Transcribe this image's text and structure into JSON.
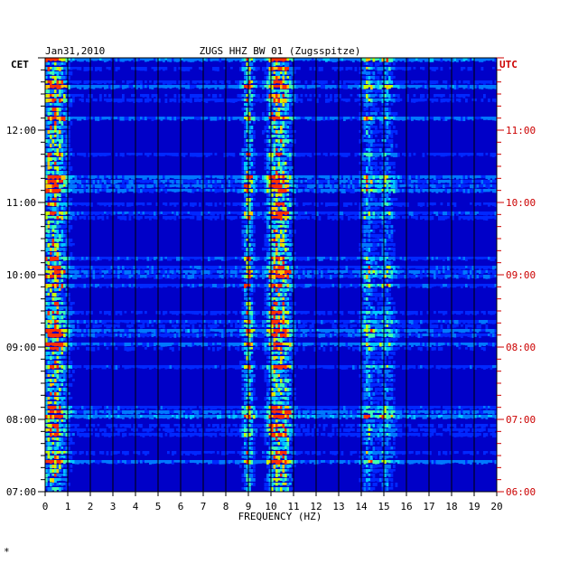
{
  "chart_data": {
    "type": "heatmap",
    "date": "Jan31,2010",
    "title": "ZUGS HHZ BW 01 (Zugsspitze)",
    "xlabel": "FREQUENCY (HZ)",
    "xlim": [
      0,
      20
    ],
    "x_ticks": [
      "0",
      "1",
      "2",
      "3",
      "4",
      "5",
      "6",
      "7",
      "8",
      "9",
      "10",
      "11",
      "12",
      "13",
      "14",
      "15",
      "16",
      "17",
      "18",
      "19",
      "20"
    ],
    "left_axis": {
      "label": "CET",
      "ticks": [
        "12:00",
        "11:00",
        "10:00",
        "09:00",
        "08:00",
        "07:00"
      ],
      "tick_hours": [
        12,
        11,
        10,
        9,
        8,
        7
      ],
      "color": "#000000"
    },
    "right_axis": {
      "label": "UTC",
      "ticks": [
        "11:00",
        "10:00",
        "09:00",
        "08:00",
        "07:00",
        "06:00"
      ],
      "tick_hours": [
        11,
        10,
        9,
        8,
        7,
        6
      ],
      "color": "#cc0000"
    },
    "time_range_cet": [
      "07:00",
      "13:00"
    ],
    "colors": {
      "background": "#0000c8",
      "grid": "#000000",
      "low": "#0000ff",
      "mid": "#00c8ff",
      "high": "#ffff00",
      "peak": "#ff0000"
    },
    "energy_bands_hz": [
      {
        "center": 0.4,
        "width": 0.6,
        "strength": 0.85
      },
      {
        "center": 9.0,
        "width": 0.25,
        "strength": 0.7
      },
      {
        "center": 10.1,
        "width": 0.3,
        "strength": 0.75
      },
      {
        "center": 10.6,
        "width": 0.35,
        "strength": 0.75
      },
      {
        "center": 14.3,
        "width": 0.3,
        "strength": 0.55
      },
      {
        "center": 15.1,
        "width": 0.4,
        "strength": 0.45
      }
    ],
    "footer_mark": "*"
  }
}
